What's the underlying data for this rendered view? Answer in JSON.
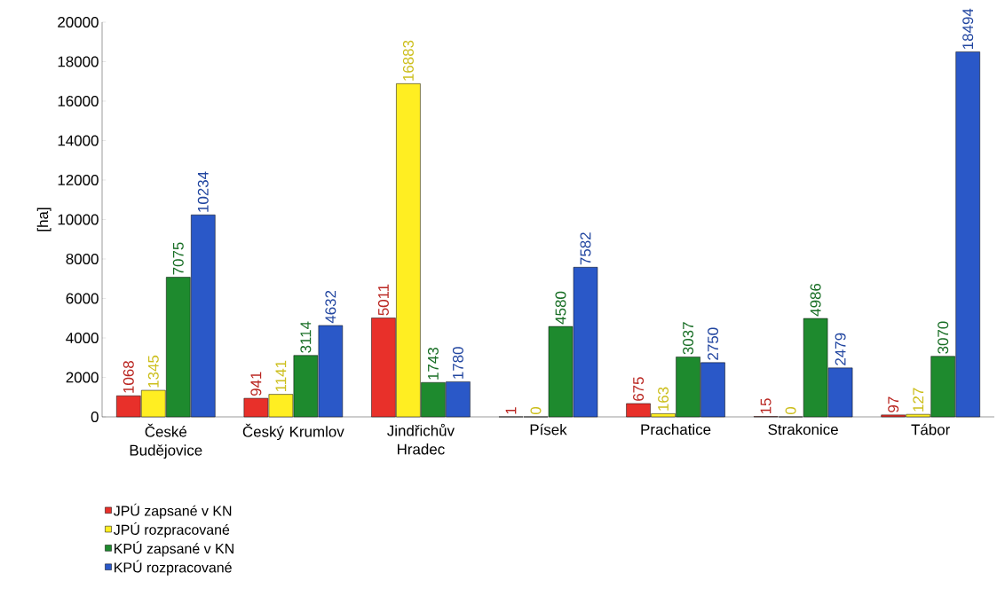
{
  "chart_data": {
    "type": "bar",
    "ylabel": "[ha]",
    "categories": [
      "České Budějovice",
      "Český Krumlov",
      "Jindřichův Hradec",
      "Písek",
      "Prachatice",
      "Strakonice",
      "Tábor"
    ],
    "series": [
      {
        "name": "JPÚ zapsané v KN",
        "color": "#e8302a",
        "values": [
          1068,
          941,
          5011,
          1,
          675,
          15,
          97
        ]
      },
      {
        "name": "JPÚ rozpracované",
        "color": "#ffee22",
        "values": [
          1345,
          1141,
          16883,
          0,
          163,
          0,
          127
        ]
      },
      {
        "name": "KPÚ zapsané v KN",
        "color": "#1e8a2e",
        "values": [
          7075,
          3114,
          1743,
          4580,
          3037,
          4986,
          3070
        ]
      },
      {
        "name": "KPÚ rozpracované",
        "color": "#2a58c8",
        "values": [
          10234,
          4632,
          1780,
          7582,
          2750,
          2479,
          18494
        ]
      }
    ],
    "ylim": [
      0,
      20000
    ],
    "yticks": [
      0,
      2000,
      4000,
      6000,
      8000,
      10000,
      12000,
      14000,
      16000,
      18000,
      20000
    ],
    "grid": false,
    "legend": "bottom left",
    "data_labels": true
  }
}
